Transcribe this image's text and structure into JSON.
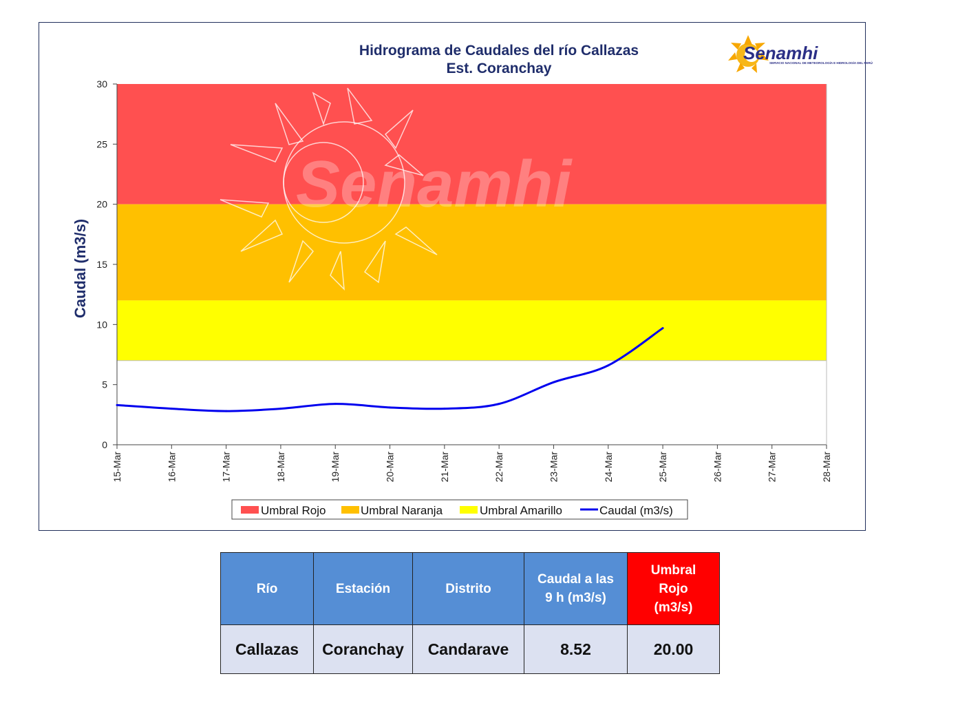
{
  "chart_data": {
    "type": "line",
    "title": "Hidrograma de Caudales del río Callazas",
    "subtitle": "Est. Coranchay",
    "ylabel": "Caudal (m3/s)",
    "xlabel": "",
    "ylim": [
      0,
      30
    ],
    "y_ticks": [
      "0",
      "5",
      "10",
      "15",
      "20",
      "25",
      "30"
    ],
    "categories": [
      "15-Mar",
      "16-Mar",
      "17-Mar",
      "18-Mar",
      "19-Mar",
      "20-Mar",
      "21-Mar",
      "22-Mar",
      "23-Mar",
      "24-Mar",
      "25-Mar",
      "26-Mar",
      "27-Mar",
      "28-Mar"
    ],
    "bands": [
      {
        "name": "Umbral Rojo",
        "from": 20,
        "to": 30,
        "color": "#ff5050"
      },
      {
        "name": "Umbral Naranja",
        "from": 12,
        "to": 20,
        "color": "#ffc000"
      },
      {
        "name": "Umbral Amarillo",
        "from": 7,
        "to": 12,
        "color": "#ffff00"
      }
    ],
    "series": [
      {
        "name": "Caudal (m3/s)",
        "color": "#0000ee",
        "x": [
          "15-Mar",
          "16-Mar",
          "17-Mar",
          "18-Mar",
          "19-Mar",
          "20-Mar",
          "21-Mar",
          "22-Mar",
          "23-Mar",
          "24-Mar",
          "25-Mar"
        ],
        "values": [
          3.3,
          3.0,
          2.8,
          3.0,
          3.4,
          3.1,
          3.0,
          3.4,
          5.2,
          6.6,
          9.7
        ]
      }
    ],
    "legend_position": "bottom",
    "grid": false
  },
  "watermark": "Senamhi",
  "logo": {
    "name": "Senamhi",
    "subtitle": "SERVICIO NACIONAL DE METEOROLOGÍA E HIDROLOGÍA DEL PERÚ"
  },
  "table": {
    "headers": [
      "Río",
      "Estación",
      "Distrito",
      "Caudal a las 9 h (m3/s)",
      "Umbral Rojo (m3/s)"
    ],
    "row": [
      "Callazas",
      "Coranchay",
      "Candarave",
      "8.52",
      "20.00"
    ]
  }
}
